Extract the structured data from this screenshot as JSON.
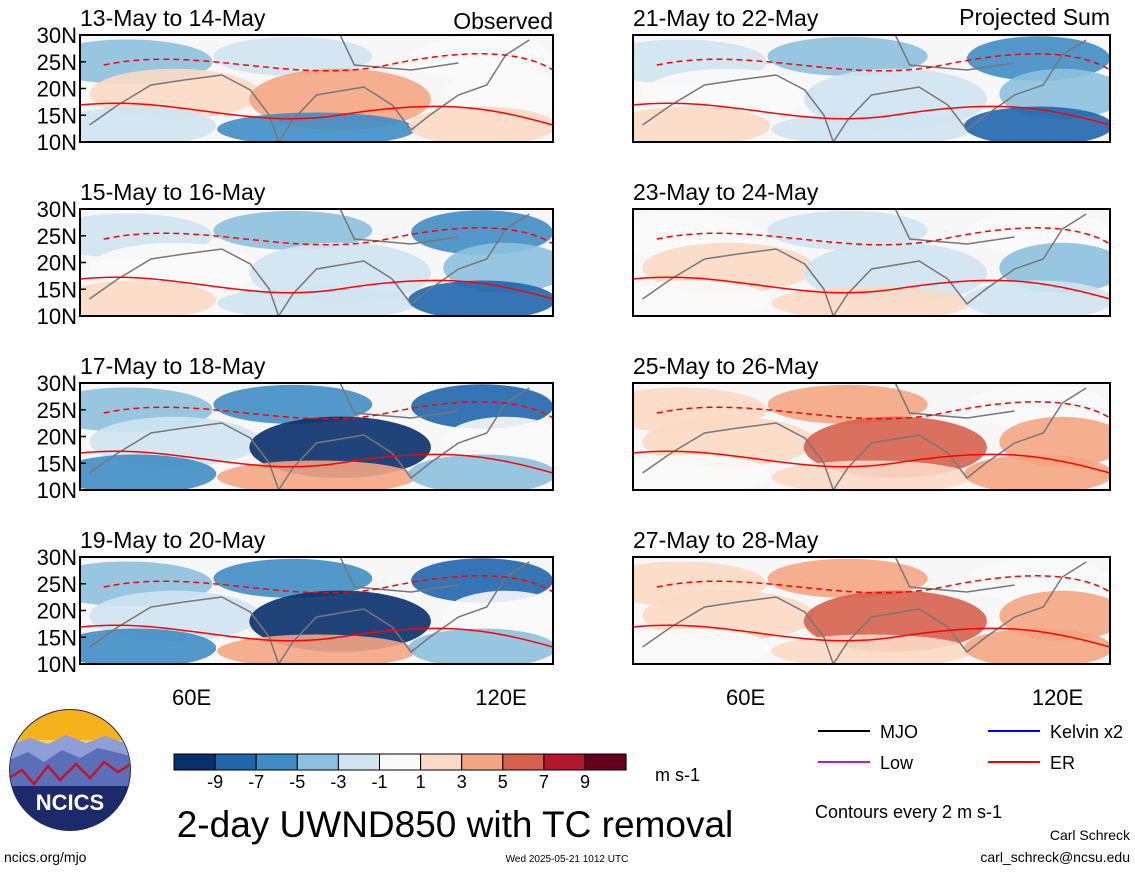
{
  "chart_data": {
    "type": "heatmap",
    "title": "2-day UWND850 with TC removal",
    "units": "m s-1",
    "colorbar": {
      "ticks": [
        "-9",
        "-7",
        "-5",
        "-3",
        "-1",
        "1",
        "3",
        "5",
        "7",
        "9"
      ],
      "colors": [
        "#08306b",
        "#1f66ad",
        "#3f8dc4",
        "#8cc0de",
        "#cfe3f1",
        "#f9f9f9",
        "#fbd9c4",
        "#f4a582",
        "#d6604d",
        "#b2182b",
        "#67001f"
      ]
    },
    "column_labels": {
      "left": "Observed",
      "right": "Projected Sum"
    },
    "lat_ticks": [
      "30N",
      "25N",
      "20N",
      "15N",
      "10N"
    ],
    "lon_ticks": [
      "60E",
      "120E"
    ],
    "panels": [
      {
        "period": "13-May to 14-May",
        "group": "Observed",
        "tone": "mixed"
      },
      {
        "period": "15-May to 16-May",
        "group": "Observed",
        "tone": "easterly"
      },
      {
        "period": "17-May to 18-May",
        "group": "Observed",
        "tone": "easterly-strong"
      },
      {
        "period": "19-May to 20-May",
        "group": "Observed",
        "tone": "easterly-strong"
      },
      {
        "period": "21-May to 22-May",
        "group": "Projected Sum",
        "tone": "easterly"
      },
      {
        "period": "23-May to 24-May",
        "group": "Projected Sum",
        "tone": "weak"
      },
      {
        "period": "25-May to 26-May",
        "group": "Projected Sum",
        "tone": "westerly"
      },
      {
        "period": "27-May to 28-May",
        "group": "Projected Sum",
        "tone": "westerly"
      }
    ],
    "legend": [
      {
        "name": "MJO",
        "color": "#000000"
      },
      {
        "name": "Kelvin x2",
        "color": "#0000ff"
      },
      {
        "name": "Low",
        "color": "#a020f0"
      },
      {
        "name": "ER",
        "color": "#ff0000"
      }
    ],
    "contour_note": "Contours every 2 m s-1"
  },
  "branding": {
    "logo_text": "NCICS",
    "site": "ncics.org/mjo",
    "timestamp": "Wed 2025-05-21 1012 UTC",
    "author": "Carl Schreck",
    "email": "carl_schreck@ncsu.edu"
  }
}
